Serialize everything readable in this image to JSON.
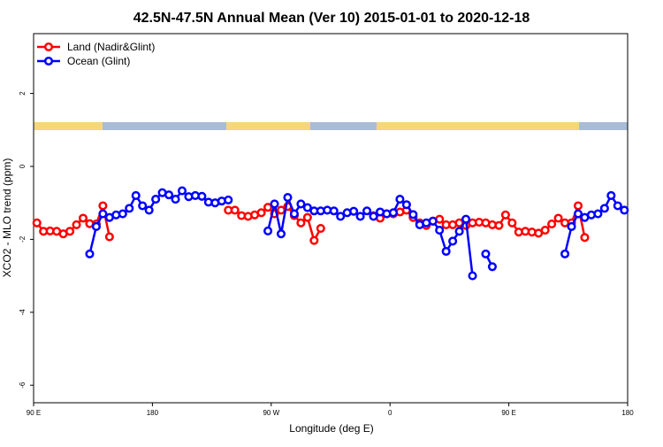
{
  "chart_data": {
    "type": "line",
    "title": "42.5N-47.5N Annual Mean (Ver 10)   2015-01-01 to 2020-12-18",
    "x_label": "Longitude (deg E)",
    "y_label": "XCO2 - MLO trend (ppm)",
    "legend_position": "top-left",
    "xlim": [
      90,
      540
    ],
    "ylim": [
      -6.48,
      3.64
    ],
    "xticks": [
      {
        "value": 90,
        "label": "90 E"
      },
      180,
      {
        "value": 270,
        "label": "90 W"
      },
      {
        "value": 360,
        "label": "0"
      },
      {
        "value": 450,
        "label": "90 E"
      },
      {
        "value": 540,
        "label": "180"
      }
    ],
    "yticks": [
      2,
      0,
      -2,
      -4,
      -6
    ],
    "x": [
      92.5,
      97.5,
      102.5,
      107.5,
      112.5,
      117.5,
      122.5,
      127.5,
      132.5,
      137.5,
      142.5,
      147.5,
      152.5,
      157.5,
      162.5,
      167.5,
      172.5,
      177.5,
      182.5,
      187.5,
      192.5,
      197.5,
      202.5,
      207.5,
      212.5,
      217.5,
      222.5,
      227.5,
      232.5,
      237.5,
      242.5,
      247.5,
      252.5,
      257.5,
      262.5,
      267.5,
      272.5,
      277.5,
      282.5,
      287.5,
      292.5,
      297.5,
      302.5,
      307.5,
      312.5,
      317.5,
      322.5,
      327.5,
      332.5,
      337.5,
      342.5,
      347.5,
      352.5,
      357.5,
      362.5,
      367.5,
      372.5,
      377.5,
      382.5,
      387.5,
      392.5,
      397.5,
      402.5,
      407.5,
      412.5,
      417.5,
      422.5,
      427.5,
      432.5,
      437.5,
      442.5,
      447.5,
      452.5,
      457.5,
      462.5,
      467.5,
      472.5,
      477.5,
      482.5,
      487.5,
      492.5,
      497.5,
      502.5,
      507.5,
      512.5,
      517.5,
      522.5,
      527.5,
      532.5,
      537.5
    ],
    "series": [
      {
        "name": "Land (Nadir&Glint)",
        "color": "#ff0000",
        "values": [
          -1.55,
          -1.78,
          -1.77,
          -1.78,
          -1.85,
          -1.78,
          -1.6,
          -1.42,
          -1.57,
          -1.58,
          -1.08,
          -1.93,
          null,
          null,
          null,
          null,
          null,
          null,
          null,
          null,
          null,
          null,
          null,
          null,
          null,
          null,
          null,
          null,
          null,
          -1.2,
          -1.2,
          -1.35,
          -1.37,
          -1.33,
          -1.27,
          -1.12,
          -1.3,
          -1.2,
          -1.1,
          -1.35,
          -1.55,
          -1.4,
          -2.03,
          -1.7,
          null,
          null,
          null,
          null,
          null,
          null,
          null,
          -1.35,
          -1.42,
          -1.3,
          -1.3,
          -1.25,
          -1.2,
          -1.4,
          -1.55,
          -1.62,
          -1.5,
          -1.45,
          -1.6,
          -1.6,
          -1.55,
          -1.62,
          -1.55,
          -1.53,
          -1.55,
          -1.6,
          -1.62,
          -1.33,
          -1.55,
          -1.8,
          -1.78,
          -1.8,
          -1.83,
          -1.75,
          -1.58,
          -1.42,
          -1.55,
          -1.55,
          -1.08,
          -1.95,
          null,
          null,
          null,
          null,
          null,
          null
        ]
      },
      {
        "name": "Ocean (Glint)",
        "color": "#0000ff",
        "values": [
          null,
          null,
          null,
          null,
          null,
          null,
          null,
          null,
          -2.4,
          -1.65,
          -1.3,
          -1.4,
          -1.33,
          -1.3,
          -1.15,
          -0.8,
          -1.08,
          -1.2,
          -0.9,
          -0.72,
          -0.78,
          -0.9,
          -0.67,
          -0.83,
          -0.8,
          -0.82,
          -0.98,
          -1.0,
          -0.95,
          -0.92,
          null,
          null,
          null,
          null,
          null,
          -1.77,
          -1.03,
          -1.85,
          -0.85,
          -1.3,
          -1.03,
          -1.13,
          -1.22,
          -1.22,
          -1.2,
          -1.22,
          -1.37,
          -1.27,
          -1.23,
          -1.37,
          -1.22,
          -1.37,
          -1.25,
          -1.3,
          -1.27,
          -0.9,
          -1.05,
          -1.32,
          -1.6,
          -1.55,
          -1.5,
          -1.75,
          -2.33,
          -2.05,
          -1.78,
          -1.45,
          -3.0,
          null,
          -2.4,
          -2.75,
          null,
          null,
          null,
          null,
          null,
          null,
          null,
          null,
          null,
          null,
          -2.4,
          -1.65,
          -1.3,
          -1.4,
          -1.33,
          -1.3,
          -1.15,
          -0.8,
          -1.08,
          -1.2
        ]
      }
    ]
  }
}
